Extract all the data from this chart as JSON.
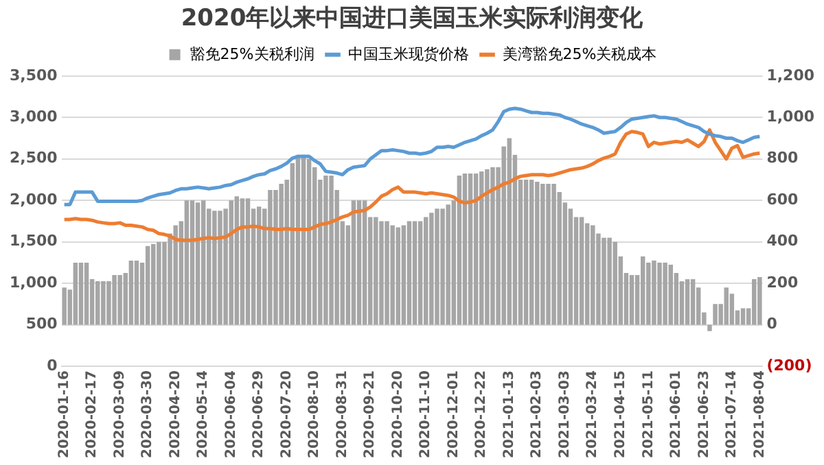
{
  "chart_data": {
    "type": "bar",
    "title": "2020年以来中国进口美国玉米实际利润变化",
    "categories": [
      "2020-01-16",
      null,
      null,
      null,
      null,
      "2020-02-17",
      null,
      null,
      null,
      null,
      "2020-03-09",
      null,
      null,
      null,
      null,
      "2020-03-30",
      null,
      null,
      null,
      null,
      "2020-04-20",
      null,
      null,
      null,
      null,
      "2020-05-14",
      null,
      null,
      null,
      null,
      "2020-06-04",
      null,
      null,
      null,
      null,
      "2020-06-29",
      null,
      null,
      null,
      null,
      "2020-07-20",
      null,
      null,
      null,
      null,
      "2020-08-10",
      null,
      null,
      null,
      null,
      "2020-08-31",
      null,
      null,
      null,
      null,
      "2020-09-21",
      null,
      null,
      null,
      null,
      "2020-10-20",
      null,
      null,
      null,
      null,
      "2020-11-10",
      null,
      null,
      null,
      null,
      "2020-12-01",
      null,
      null,
      null,
      null,
      "2020-12-22",
      null,
      null,
      null,
      null,
      "2021-01-13",
      null,
      null,
      null,
      null,
      "2021-02-03",
      null,
      null,
      null,
      null,
      "2021-03-03",
      null,
      null,
      null,
      null,
      "2021-03-24",
      null,
      null,
      null,
      null,
      "2021-04-15",
      null,
      null,
      null,
      null,
      "2021-05-11",
      null,
      null,
      null,
      null,
      "2021-06-01",
      null,
      null,
      null,
      null,
      "2021-06-23",
      null,
      null,
      null,
      null,
      "2021-07-14",
      null,
      null,
      null,
      null,
      "2021-08-04"
    ],
    "series": [
      {
        "name": "豁免25%关税利润",
        "axis": "y2",
        "color": "#a6a6a6",
        "values": [
          180,
          170,
          300,
          300,
          300,
          220,
          210,
          210,
          210,
          240,
          240,
          250,
          310,
          310,
          300,
          380,
          390,
          400,
          400,
          440,
          480,
          500,
          600,
          600,
          590,
          600,
          560,
          550,
          550,
          560,
          600,
          620,
          610,
          610,
          560,
          570,
          560,
          650,
          650,
          680,
          700,
          780,
          820,
          820,
          800,
          760,
          700,
          720,
          720,
          650,
          500,
          480,
          600,
          600,
          600,
          520,
          520,
          500,
          500,
          480,
          470,
          480,
          500,
          500,
          500,
          520,
          540,
          560,
          560,
          580,
          600,
          720,
          730,
          730,
          730,
          740,
          750,
          760,
          760,
          860,
          900,
          820,
          700,
          700,
          700,
          690,
          680,
          680,
          680,
          640,
          590,
          560,
          520,
          520,
          490,
          480,
          440,
          420,
          420,
          400,
          330,
          250,
          240,
          240,
          330,
          300,
          310,
          300,
          300,
          290,
          250,
          210,
          220,
          220,
          180,
          60,
          -30,
          100,
          100,
          180,
          150,
          70,
          80,
          80,
          220,
          230
        ]
      },
      {
        "name": "中国玉米现货价格",
        "type": "line",
        "color": "#5b9bd5",
        "values": [
          1950,
          1950,
          2100,
          2100,
          2100,
          2100,
          1990,
          1990,
          1990,
          1990,
          1990,
          1990,
          1990,
          1990,
          2000,
          2030,
          2050,
          2070,
          2080,
          2090,
          2120,
          2140,
          2140,
          2150,
          2160,
          2150,
          2140,
          2150,
          2160,
          2180,
          2190,
          2220,
          2240,
          2260,
          2290,
          2310,
          2320,
          2360,
          2380,
          2410,
          2450,
          2510,
          2530,
          2530,
          2530,
          2480,
          2440,
          2350,
          2340,
          2330,
          2310,
          2370,
          2400,
          2410,
          2420,
          2500,
          2550,
          2600,
          2600,
          2610,
          2600,
          2590,
          2570,
          2570,
          2560,
          2570,
          2590,
          2640,
          2640,
          2650,
          2640,
          2670,
          2700,
          2720,
          2740,
          2780,
          2810,
          2850,
          2950,
          3070,
          3100,
          3110,
          3100,
          3080,
          3060,
          3060,
          3050,
          3050,
          3040,
          3030,
          3000,
          2980,
          2950,
          2920,
          2900,
          2880,
          2850,
          2810,
          2820,
          2830,
          2880,
          2940,
          2980,
          2990,
          3000,
          3010,
          3020,
          3000,
          3000,
          2990,
          2980,
          2950,
          2920,
          2900,
          2880,
          2830,
          2800,
          2780,
          2770,
          2750,
          2750,
          2720,
          2700,
          2730,
          2760,
          2770
        ]
      },
      {
        "name": "美湾豁免25%关税成本",
        "type": "line",
        "color": "#ed7d31",
        "values": [
          1770,
          1770,
          1780,
          1770,
          1770,
          1760,
          1740,
          1730,
          1720,
          1720,
          1730,
          1700,
          1700,
          1690,
          1680,
          1650,
          1640,
          1600,
          1590,
          1570,
          1530,
          1520,
          1520,
          1520,
          1530,
          1540,
          1550,
          1540,
          1550,
          1560,
          1600,
          1650,
          1680,
          1680,
          1690,
          1680,
          1660,
          1660,
          1650,
          1650,
          1660,
          1650,
          1650,
          1650,
          1650,
          1680,
          1710,
          1720,
          1740,
          1770,
          1800,
          1820,
          1860,
          1870,
          1880,
          1920,
          1980,
          2050,
          2080,
          2130,
          2160,
          2100,
          2100,
          2100,
          2090,
          2080,
          2090,
          2080,
          2070,
          2060,
          2040,
          1990,
          1970,
          1980,
          2000,
          2050,
          2090,
          2130,
          2160,
          2200,
          2220,
          2260,
          2290,
          2300,
          2310,
          2310,
          2310,
          2300,
          2310,
          2330,
          2350,
          2370,
          2380,
          2390,
          2410,
          2440,
          2480,
          2510,
          2530,
          2560,
          2700,
          2800,
          2830,
          2820,
          2800,
          2650,
          2700,
          2680,
          2690,
          2700,
          2710,
          2700,
          2730,
          2690,
          2650,
          2710,
          2850,
          2700,
          2600,
          2500,
          2630,
          2660,
          2520,
          2540,
          2560,
          2570
        ]
      }
    ],
    "ylim": [
      0,
      3500
    ],
    "yticks": [
      0,
      500,
      {
        "value": 1000,
        "label": "1,000"
      },
      {
        "value": 1500,
        "label": "1,500"
      },
      {
        "value": 2000,
        "label": "2,000"
      },
      {
        "value": 2500,
        "label": "2,500"
      },
      {
        "value": 3000,
        "label": "3,000"
      },
      {
        "value": 3500,
        "label": "3,500"
      }
    ],
    "y2lim": [
      -200,
      1200
    ],
    "y2ticks": [
      {
        "value": -200,
        "label": "(200)"
      },
      0,
      200,
      400,
      600,
      800,
      {
        "value": 1000,
        "label": "1,000"
      },
      {
        "value": 1200,
        "label": "1,200"
      }
    ],
    "grid": "y",
    "legend": "top",
    "marker": "none"
  }
}
